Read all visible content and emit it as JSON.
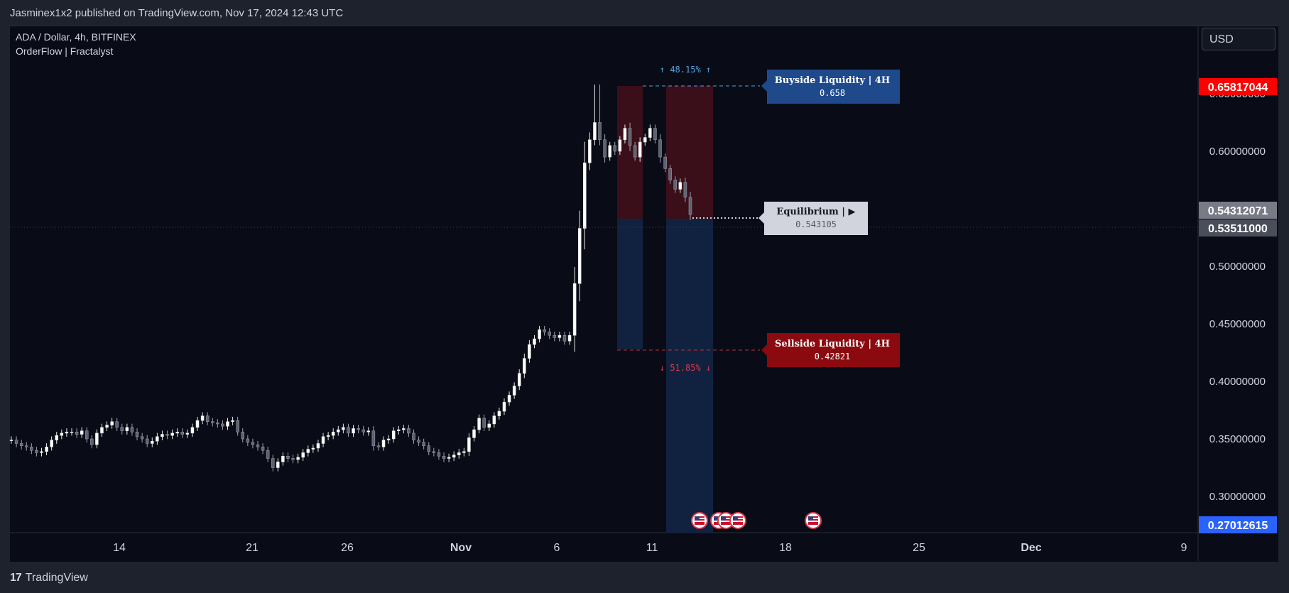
{
  "header": {
    "published": "Jasminex1x2 published on TradingView.com, Nov 17, 2024 12:43 UTC"
  },
  "legend": {
    "symbol": "ADA / Dollar, 4h, BITFINEX",
    "indicator": "OrderFlow | Fractalyst"
  },
  "currency": "USD",
  "footer": {
    "brand": "TradingView"
  },
  "colors": {
    "background": "#090c16",
    "premium_zone": "#3a0f1a",
    "discount_zone": "#112240",
    "buyside": "#1e4a8c",
    "sellside": "#8b0a0f",
    "equilibrium": "#d1d4dc",
    "last_price": "#ff0000",
    "low_price": "#2962ff"
  },
  "chart_data": {
    "type": "candlestick",
    "x_ticks": [
      "14",
      "21",
      "26",
      "Nov",
      "6",
      "11",
      "18",
      "25",
      "Dec",
      "9"
    ],
    "y_ticks": [
      "0.65000000",
      "0.60000000",
      "0.55000000",
      "0.50000000",
      "0.45000000",
      "0.40000000",
      "0.35000000",
      "0.30000000"
    ],
    "y_tick_values": [
      0.65,
      0.6,
      0.55,
      0.5,
      0.45,
      0.4,
      0.35,
      0.3
    ],
    "price_labels": [
      {
        "text": "0.65817044",
        "value": 0.65817044,
        "color": "#ff0000"
      },
      {
        "text": "0.54312071",
        "value": 0.54312071,
        "color": "#787b86"
      },
      {
        "text": "0.53511000",
        "value": 0.53511,
        "color": "#4a4e5a"
      },
      {
        "text": "0.27012615",
        "value": 0.27012615,
        "color": "#2962ff"
      }
    ],
    "annotations": {
      "up_pct": "↑ 48.15% ↑",
      "down_pct": "↓ 51.85% ↓",
      "buyside": {
        "title": "Buyside Liquidity | 4H",
        "value": "0.658",
        "price": 0.658
      },
      "equilibrium": {
        "title": "Equilibrium | ▶",
        "value": "0.543105",
        "price": 0.543105
      },
      "sellside": {
        "title": "Sellside Liquidity | 4H",
        "value": "0.42821",
        "price": 0.42821
      }
    },
    "ylim": [
      0.27012615,
      0.66
    ],
    "close_series": [
      0.349,
      0.346,
      0.344,
      0.343,
      0.34,
      0.338,
      0.339,
      0.343,
      0.349,
      0.353,
      0.355,
      0.356,
      0.356,
      0.354,
      0.357,
      0.35,
      0.345,
      0.355,
      0.36,
      0.362,
      0.365,
      0.36,
      0.357,
      0.36,
      0.356,
      0.352,
      0.35,
      0.346,
      0.348,
      0.352,
      0.354,
      0.353,
      0.355,
      0.356,
      0.354,
      0.355,
      0.36,
      0.366,
      0.37,
      0.365,
      0.364,
      0.363,
      0.361,
      0.365,
      0.366,
      0.356,
      0.35,
      0.347,
      0.345,
      0.343,
      0.34,
      0.333,
      0.325,
      0.33,
      0.335,
      0.333,
      0.332,
      0.334,
      0.338,
      0.341,
      0.342,
      0.346,
      0.352,
      0.353,
      0.356,
      0.358,
      0.36,
      0.355,
      0.359,
      0.358,
      0.356,
      0.357,
      0.344,
      0.343,
      0.349,
      0.35,
      0.357,
      0.358,
      0.359,
      0.355,
      0.349,
      0.347,
      0.344,
      0.339,
      0.338,
      0.335,
      0.333,
      0.334,
      0.336,
      0.338,
      0.339,
      0.351,
      0.358,
      0.368,
      0.36,
      0.363,
      0.37,
      0.374,
      0.382,
      0.388,
      0.396,
      0.407,
      0.42,
      0.432,
      0.437,
      0.445,
      0.443,
      0.44,
      0.438,
      0.44,
      0.435,
      0.44,
      0.485,
      0.533,
      0.59,
      0.61,
      0.625,
      0.61,
      0.595,
      0.605,
      0.6,
      0.61,
      0.62,
      0.605,
      0.595,
      0.608,
      0.612,
      0.62,
      0.61,
      0.595,
      0.585,
      0.575,
      0.567,
      0.573,
      0.56,
      0.545
    ]
  }
}
